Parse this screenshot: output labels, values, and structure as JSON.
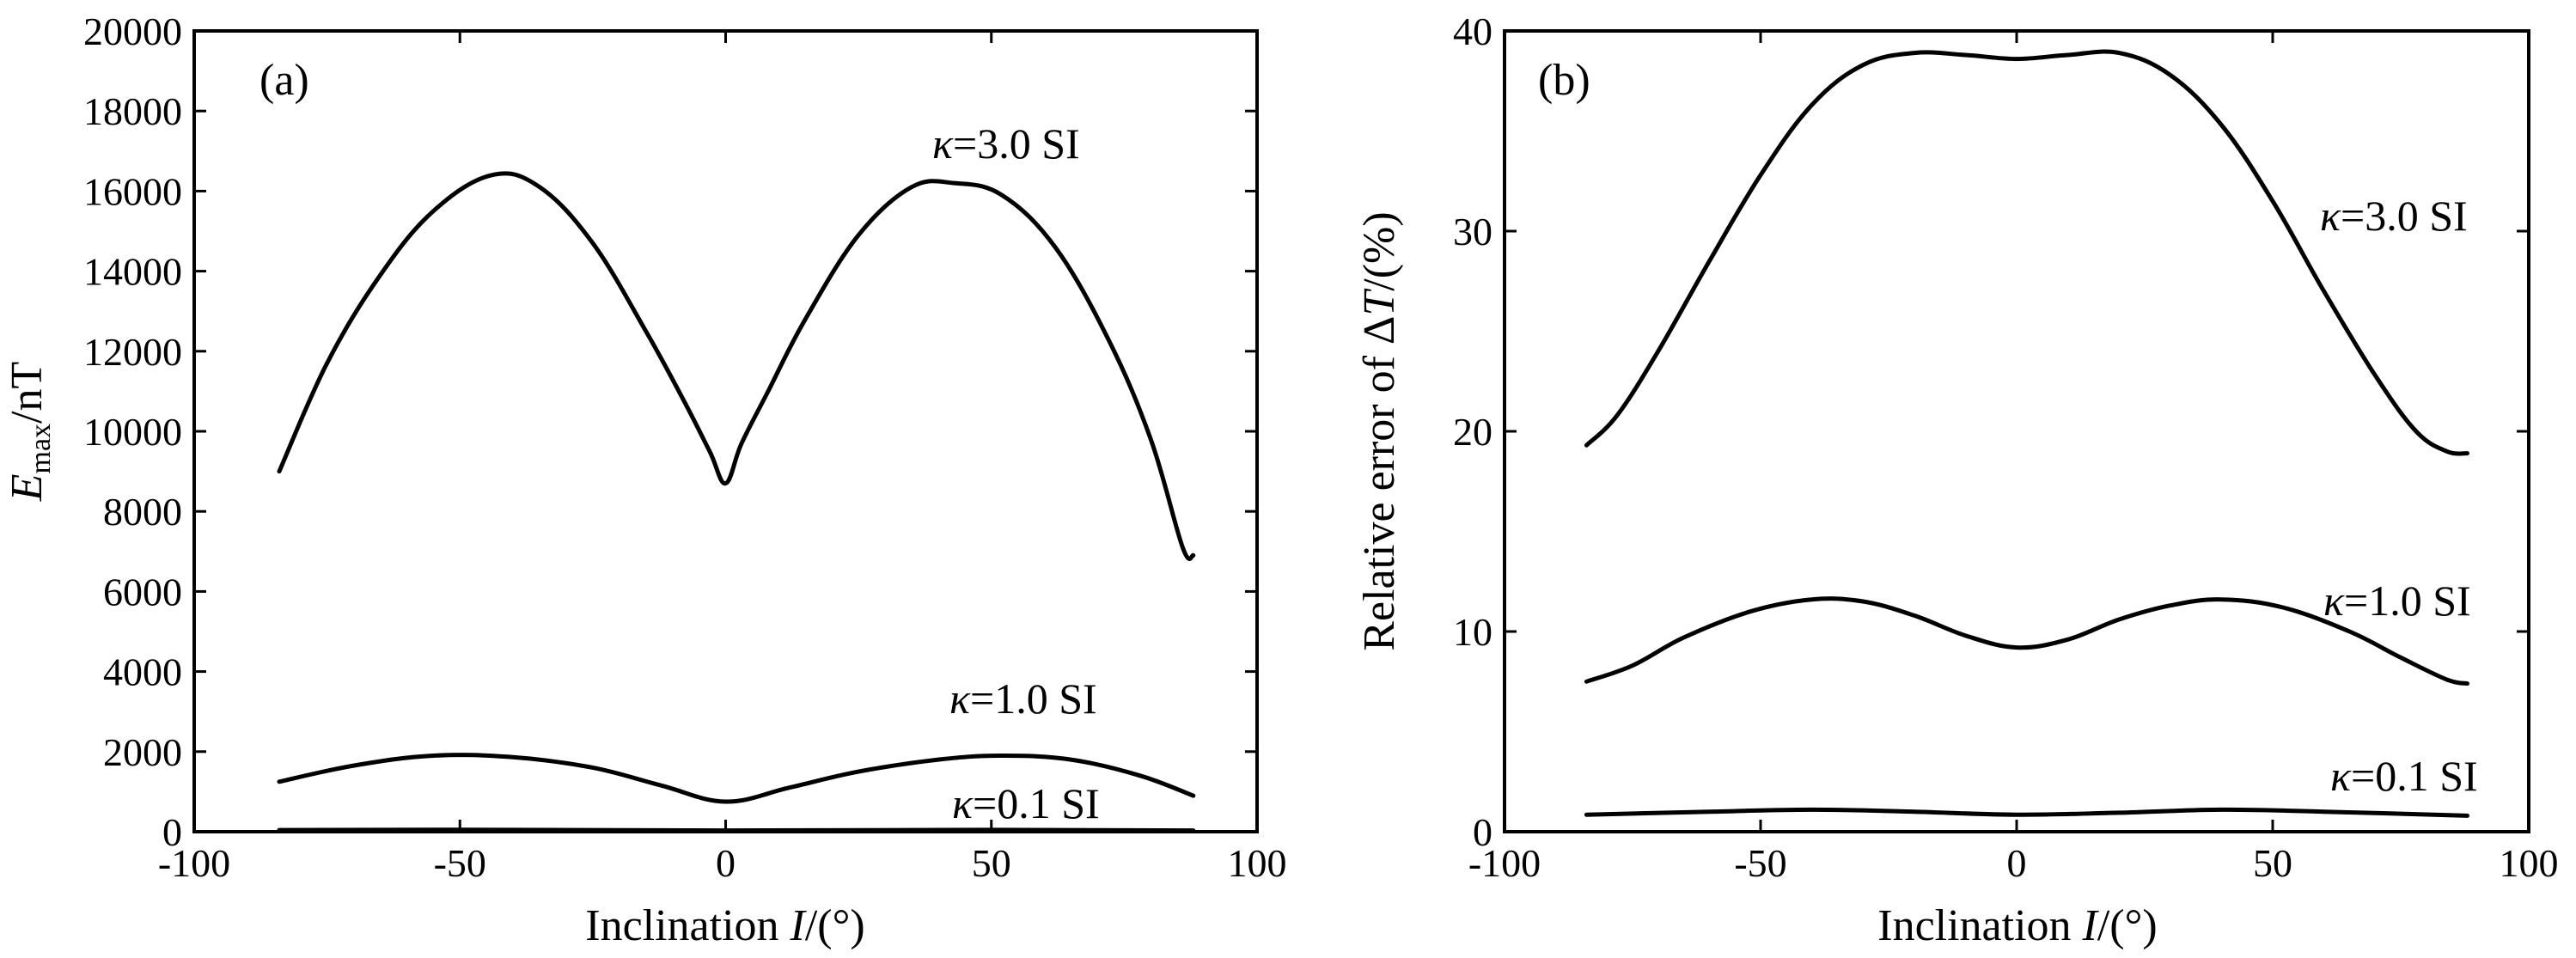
{
  "chart_data": [
    {
      "type": "line",
      "panel_label": "(a)",
      "xlabel": "Inclination I/(°)",
      "ylabel": "E_max/nT",
      "ylabel_main": "E",
      "ylabel_sub": "max",
      "ylabel_rest": "/nT",
      "xlabel_pre": "Inclination ",
      "xlabel_italic": "I",
      "xlabel_post": "/(°)",
      "xlim": [
        -100,
        100
      ],
      "ylim": [
        0,
        20000
      ],
      "xticks": [
        -100,
        -50,
        0,
        50,
        100
      ],
      "yticks": [
        0,
        2000,
        4000,
        6000,
        8000,
        10000,
        12000,
        14000,
        16000,
        18000,
        20000
      ],
      "grid": false,
      "series": [
        {
          "name": "κ=3.0 SI",
          "label_greek": "κ",
          "label_rest": "=3.0 SI",
          "x": [
            -84,
            -75,
            -65,
            -55,
            -44,
            -35,
            -25,
            -15,
            -8,
            -3,
            0,
            3,
            8,
            15,
            25,
            35,
            43,
            52,
            62,
            72,
            80,
            86,
            88
          ],
          "y": [
            9000,
            11700,
            13900,
            15500,
            16400,
            16100,
            14700,
            12500,
            10800,
            9500,
            8700,
            9700,
            11000,
            12800,
            14900,
            16100,
            16200,
            15900,
            14600,
            12300,
            9800,
            7100,
            6900
          ]
        },
        {
          "name": "κ=1.0 SI",
          "label_greek": "κ",
          "label_rest": "=1.0 SI",
          "x": [
            -84,
            -70,
            -55,
            -40,
            -25,
            -12,
            0,
            12,
            25,
            40,
            52,
            65,
            78,
            88
          ],
          "y": [
            1250,
            1650,
            1900,
            1860,
            1600,
            1150,
            750,
            1100,
            1500,
            1800,
            1900,
            1800,
            1400,
            900
          ]
        },
        {
          "name": "κ=0.1 SI",
          "label_greek": "κ",
          "label_rest": "=0.1 SI",
          "x": [
            -84,
            -50,
            0,
            50,
            88
          ],
          "y": [
            40,
            50,
            30,
            45,
            30
          ]
        }
      ]
    },
    {
      "type": "line",
      "panel_label": "(b)",
      "xlabel": "Inclination I/(°)",
      "ylabel": "Relative error of ΔT/(%)",
      "ylabel_pre": "Relative error of Δ",
      "ylabel_italic": "T",
      "ylabel_post": "/(%)",
      "xlabel_pre": "Inclination ",
      "xlabel_italic": "I",
      "xlabel_post": "/(°)",
      "xlim": [
        -100,
        100
      ],
      "ylim": [
        0,
        40
      ],
      "xticks": [
        -100,
        -50,
        0,
        50,
        100
      ],
      "yticks": [
        0,
        10,
        20,
        30,
        40
      ],
      "grid": false,
      "series": [
        {
          "name": "κ=3.0 SI",
          "label_greek": "κ",
          "label_rest": "=3.0 SI",
          "x": [
            -84,
            -78,
            -70,
            -60,
            -50,
            -40,
            -30,
            -20,
            -10,
            0,
            10,
            20,
            30,
            40,
            50,
            60,
            70,
            78,
            84,
            88
          ],
          "y": [
            19.3,
            20.8,
            24.0,
            28.5,
            32.8,
            36.3,
            38.3,
            38.9,
            38.8,
            38.6,
            38.8,
            38.9,
            37.8,
            35.3,
            31.5,
            27.0,
            22.8,
            20.0,
            19.0,
            18.9
          ]
        },
        {
          "name": "κ=1.0 SI",
          "label_greek": "κ",
          "label_rest": "=1.0 SI",
          "x": [
            -84,
            -75,
            -65,
            -52,
            -40,
            -30,
            -20,
            -10,
            0,
            10,
            20,
            30,
            40,
            52,
            65,
            75,
            84,
            88
          ],
          "y": [
            7.5,
            8.3,
            9.7,
            11.0,
            11.6,
            11.5,
            10.8,
            9.8,
            9.2,
            9.6,
            10.6,
            11.3,
            11.6,
            11.2,
            10.0,
            8.7,
            7.6,
            7.4
          ]
        },
        {
          "name": "κ=0.1 SI",
          "label_greek": "κ",
          "label_rest": "=0.1 SI",
          "x": [
            -84,
            -60,
            -40,
            -20,
            0,
            20,
            40,
            60,
            88
          ],
          "y": [
            0.85,
            1.0,
            1.1,
            1.0,
            0.85,
            0.95,
            1.1,
            1.0,
            0.8
          ]
        }
      ]
    }
  ]
}
